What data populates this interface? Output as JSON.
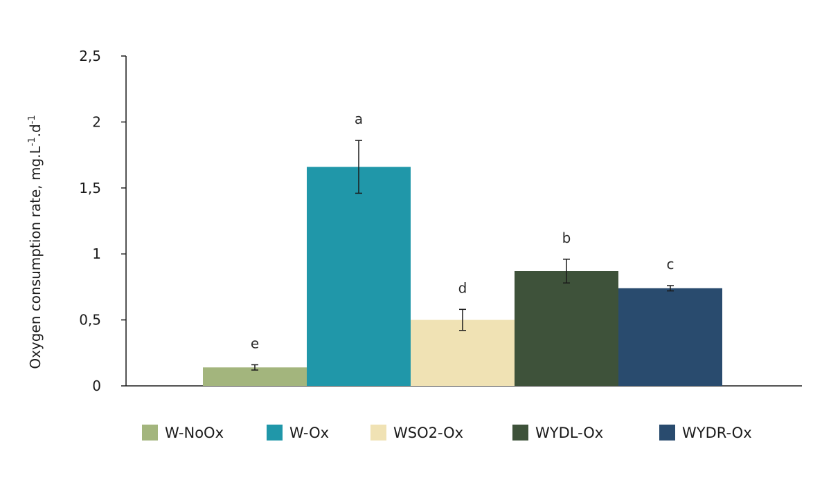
{
  "chart_data": {
    "type": "bar",
    "ylabel": "Oxygen consumption rate, mg.L",
    "ylabel_unit_sup1": "-1",
    "ylabel_mid": ".d",
    "ylabel_unit_sup2": "-1",
    "ylim": [
      0,
      2.5
    ],
    "yticks": [
      {
        "value": 0,
        "label": "0"
      },
      {
        "value": 0.5,
        "label": "0,5"
      },
      {
        "value": 1,
        "label": "1"
      },
      {
        "value": 1.5,
        "label": "1,5"
      },
      {
        "value": 2,
        "label": "2"
      },
      {
        "value": 2.5,
        "label": "2,5"
      }
    ],
    "grid": false,
    "legend_position": "bottom",
    "series": [
      {
        "name": "W-NoOx",
        "value": 0.14,
        "error": 0.02,
        "letter": "e",
        "color": "#a3b57d"
      },
      {
        "name": "W-Ox",
        "value": 1.66,
        "error": 0.2,
        "letter": "a",
        "color": "#2097a9"
      },
      {
        "name": "WSO2-Ox",
        "value": 0.5,
        "error": 0.08,
        "letter": "d",
        "color": "#f0e2b4"
      },
      {
        "name": "WYDL-Ox",
        "value": 0.87,
        "error": 0.09,
        "letter": "b",
        "color": "#3e523a"
      },
      {
        "name": "WYDR-Ox",
        "value": 0.74,
        "error": 0.02,
        "letter": "c",
        "color": "#294b6e"
      }
    ]
  }
}
